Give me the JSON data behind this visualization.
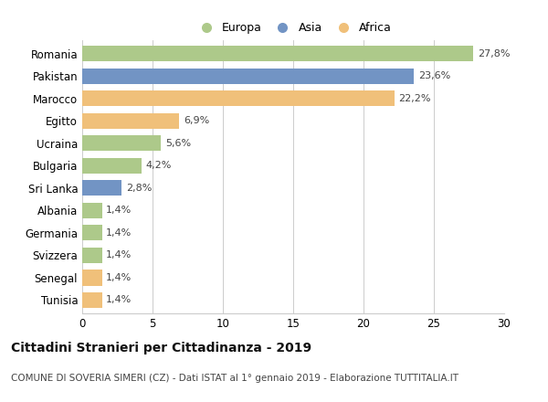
{
  "categories": [
    "Romania",
    "Pakistan",
    "Marocco",
    "Egitto",
    "Ucraina",
    "Bulgaria",
    "Sri Lanka",
    "Albania",
    "Germania",
    "Svizzera",
    "Senegal",
    "Tunisia"
  ],
  "values": [
    27.8,
    23.6,
    22.2,
    6.9,
    5.6,
    4.2,
    2.8,
    1.4,
    1.4,
    1.4,
    1.4,
    1.4
  ],
  "labels": [
    "27,8%",
    "23,6%",
    "22,2%",
    "6,9%",
    "5,6%",
    "4,2%",
    "2,8%",
    "1,4%",
    "1,4%",
    "1,4%",
    "1,4%",
    "1,4%"
  ],
  "continents": [
    "Europa",
    "Asia",
    "Africa",
    "Africa",
    "Europa",
    "Europa",
    "Asia",
    "Europa",
    "Europa",
    "Europa",
    "Africa",
    "Africa"
  ],
  "colors": {
    "Europa": "#adc98a",
    "Asia": "#7294c4",
    "Africa": "#f0c07a"
  },
  "legend_labels": [
    "Europa",
    "Asia",
    "Africa"
  ],
  "xlim": [
    0,
    30
  ],
  "xticks": [
    0,
    5,
    10,
    15,
    20,
    25,
    30
  ],
  "title": "Cittadini Stranieri per Cittadinanza - 2019",
  "subtitle": "COMUNE DI SOVERIA SIMERI (CZ) - Dati ISTAT al 1° gennaio 2019 - Elaborazione TUTTITALIA.IT",
  "bg_color": "#ffffff",
  "grid_color": "#cccccc",
  "bar_height": 0.7,
  "title_fontsize": 10,
  "subtitle_fontsize": 7.5,
  "label_fontsize": 8,
  "tick_fontsize": 8.5
}
